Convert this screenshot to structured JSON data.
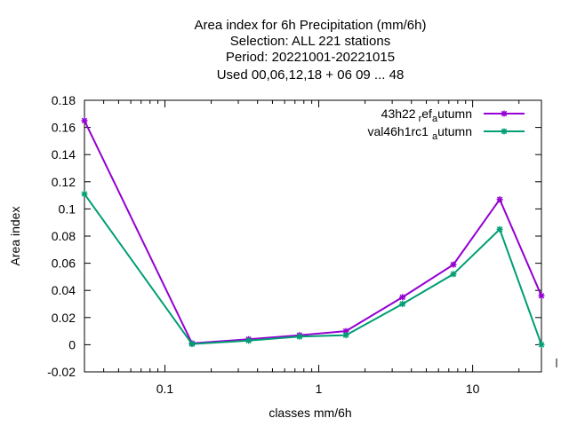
{
  "chart_data": {
    "type": "line",
    "title_lines": [
      "Area index  for 6h Precipitation (mm/6h)",
      "Selection: ALL     221 stations",
      "Period: 20221001-20221015",
      "Used  00,06,12,18  + 06 09 ... 48"
    ],
    "xlabel": "classes mm/6h",
    "ylabel": "Area index",
    "x_scale": "log",
    "xlim": [
      0.03,
      28
    ],
    "ylim": [
      -0.02,
      0.18
    ],
    "x_ticks": [
      {
        "value": 0.1,
        "label": "0.1"
      },
      {
        "value": 1,
        "label": "1"
      },
      {
        "value": 10,
        "label": "10"
      }
    ],
    "y_ticks": [
      {
        "value": -0.02,
        "label": "-0.02"
      },
      {
        "value": 0,
        "label": "0"
      },
      {
        "value": 0.02,
        "label": "0.02"
      },
      {
        "value": 0.04,
        "label": "0.04"
      },
      {
        "value": 0.06,
        "label": "0.06"
      },
      {
        "value": 0.08,
        "label": "0.08"
      },
      {
        "value": 0.1,
        "label": "0.1"
      },
      {
        "value": 0.12,
        "label": "0.12"
      },
      {
        "value": 0.14,
        "label": "0.14"
      },
      {
        "value": 0.16,
        "label": "0.16"
      },
      {
        "value": 0.18,
        "label": "0.18"
      }
    ],
    "legend_position": "top-right",
    "grid": false,
    "x": [
      0.03,
      0.15,
      0.35,
      0.75,
      1.5,
      3.5,
      7.5,
      15,
      28
    ],
    "series": [
      {
        "name_main": "43h22",
        "name_sub1": "r",
        "name_mid": "ef",
        "name_sub2": "a",
        "name_end": "utumn",
        "color": "#9400d3",
        "values": [
          0.165,
          0.001,
          0.004,
          0.007,
          0.01,
          0.035,
          0.059,
          0.107,
          0.036
        ]
      },
      {
        "name_main": "val46h1rc1",
        "name_sub2": "a",
        "name_end": "utumn",
        "color": "#009e73",
        "values": [
          0.111,
          0.0005,
          0.003,
          0.006,
          0.007,
          0.03,
          0.052,
          0.085,
          0.0
        ]
      }
    ]
  }
}
